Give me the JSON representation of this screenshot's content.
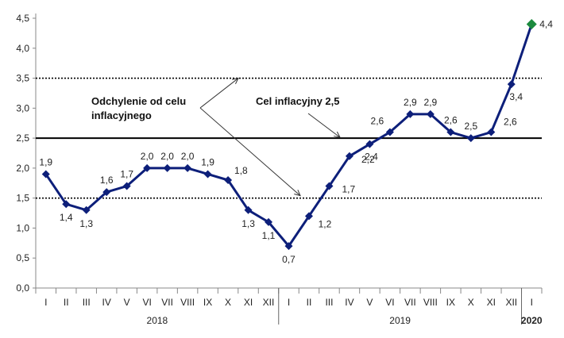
{
  "chart_data": {
    "type": "line",
    "ylim": [
      0,
      4.5
    ],
    "yticks": [
      "0,0",
      "0,5",
      "1,0",
      "1,5",
      "2,0",
      "2,5",
      "3,0",
      "3,5",
      "4,0",
      "4,5"
    ],
    "months": [
      "I",
      "II",
      "III",
      "IV",
      "V",
      "VI",
      "VII",
      "VIII",
      "IX",
      "X",
      "XI",
      "XII",
      "I",
      "II",
      "III",
      "IV",
      "V",
      "VI",
      "VII",
      "VIII",
      "IX",
      "X",
      "XI",
      "XII",
      "I"
    ],
    "years": [
      "2018",
      "2019",
      "2020"
    ],
    "values": [
      1.9,
      1.4,
      1.3,
      1.6,
      1.7,
      2.0,
      2.0,
      2.0,
      1.9,
      1.8,
      1.3,
      1.1,
      0.7,
      1.2,
      1.7,
      2.2,
      2.4,
      2.6,
      2.9,
      2.9,
      2.6,
      2.5,
      2.6,
      3.4,
      4.4
    ],
    "labels": [
      "1,9",
      "1,4",
      "1,3",
      "1,6",
      "1,7",
      "2,0",
      "2,0",
      "2,0",
      "1,9",
      "1,8",
      "1,3",
      "1,1",
      "0,7",
      "1,2",
      "1,7",
      "2,2",
      "2,4",
      "2,6",
      "2,9",
      "2,9",
      "2,6",
      "2,5",
      "2,6",
      "3,4",
      "4,4"
    ],
    "reference_lines": [
      {
        "value": 3.5,
        "style": "dotted"
      },
      {
        "value": 2.5,
        "style": "solid"
      },
      {
        "value": 1.5,
        "style": "dotted"
      }
    ],
    "annotations": {
      "tolerance_line1": "Odchylenie od celu",
      "tolerance_line2": "inflacyjnego",
      "target": "Cel inflacyjny 2,5"
    },
    "colors": {
      "line": "#0d1f7a",
      "last_marker": "#1b8a3e",
      "grid": "#000000"
    }
  }
}
